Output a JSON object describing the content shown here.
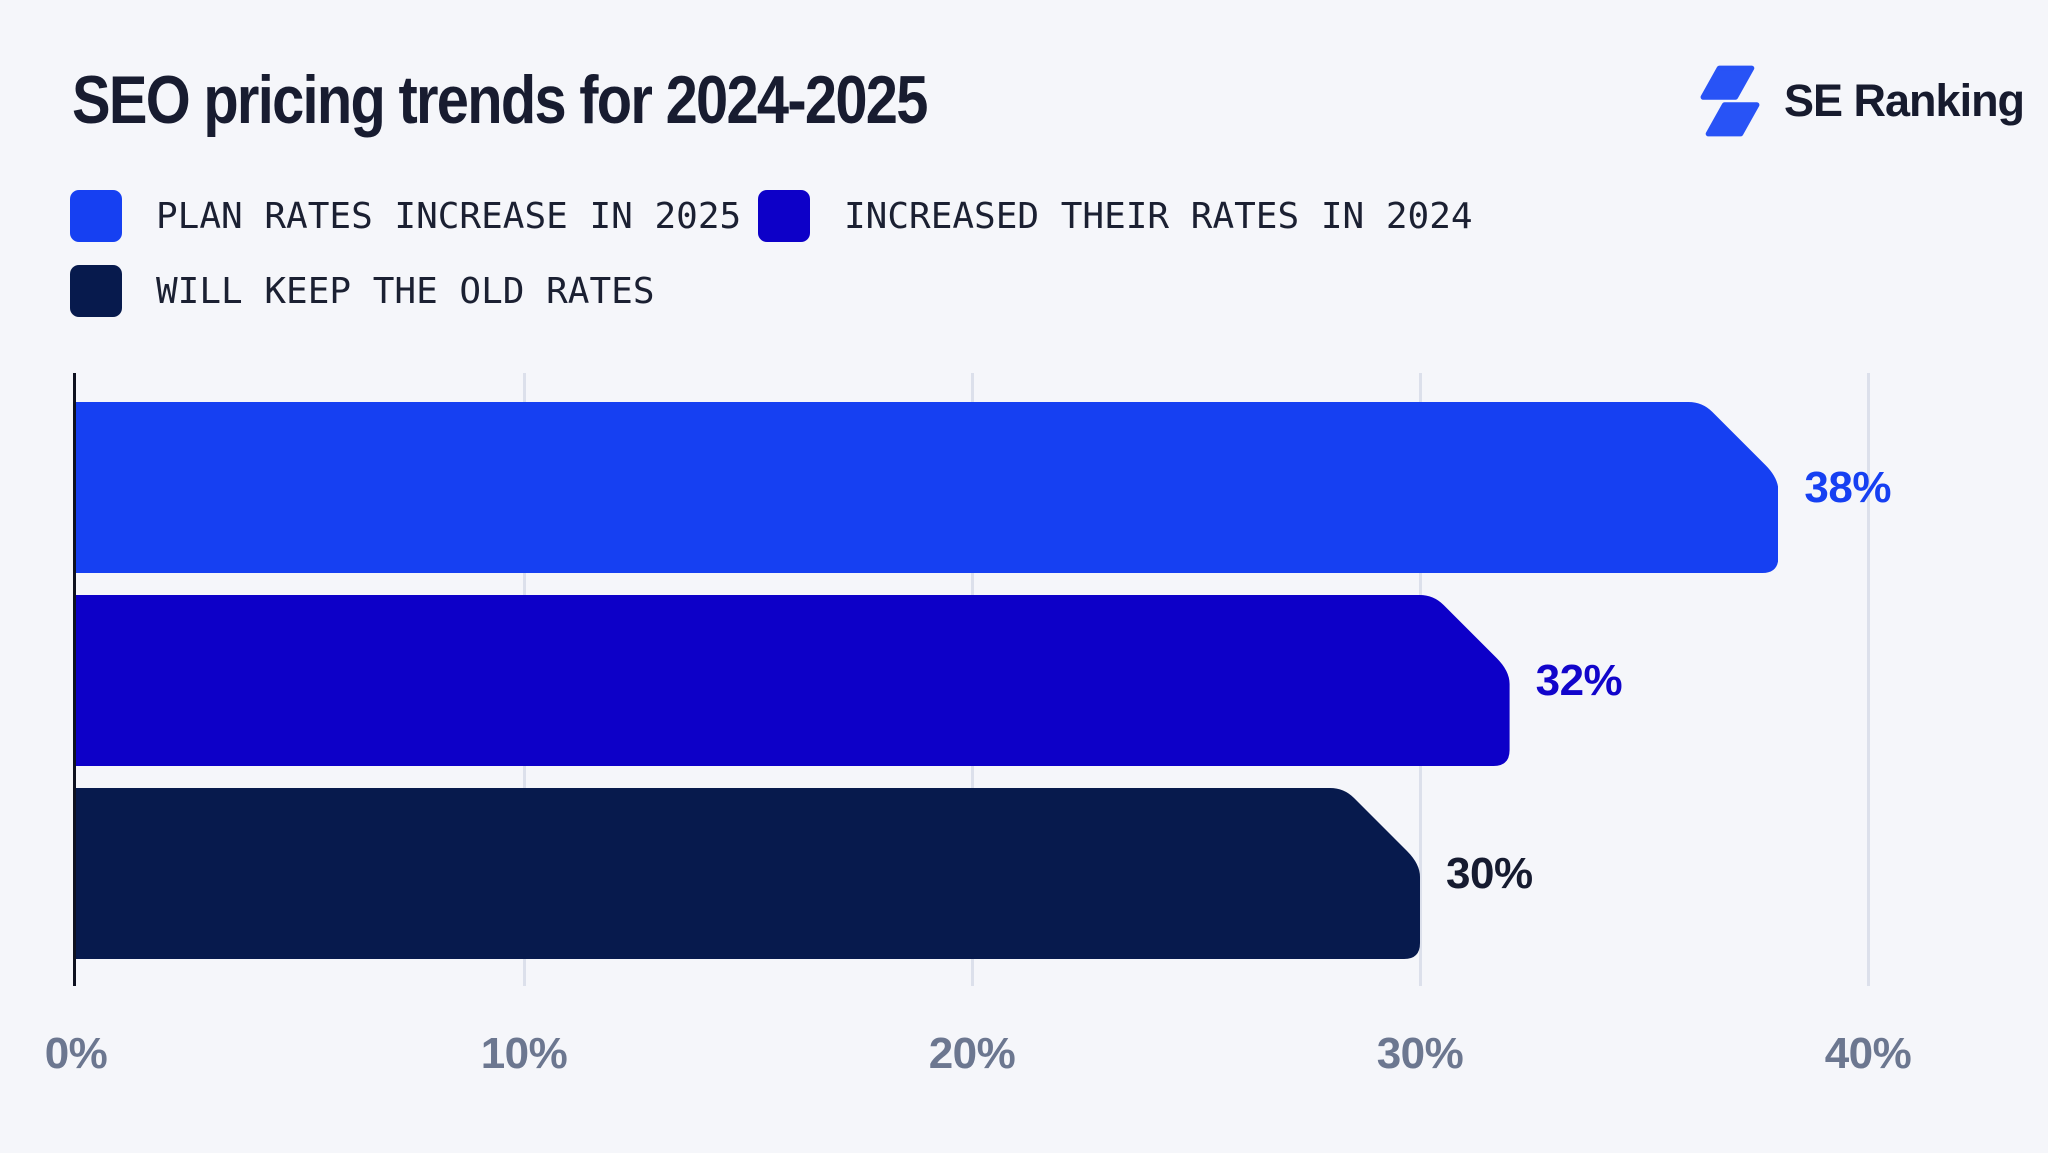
{
  "header": {
    "title": "SEO pricing trends for 2024-2025",
    "brand": "SE Ranking"
  },
  "legend": {
    "items": [
      {
        "label": "PLAN RATES INCREASE IN 2025",
        "color": "#1640F2"
      },
      {
        "label": "INCREASED THEIR RATES IN 2024",
        "color": "#0D00C8"
      },
      {
        "label": "WILL KEEP THE OLD RATES",
        "color": "#071A4D"
      }
    ]
  },
  "chart_data": {
    "type": "bar",
    "orientation": "horizontal",
    "title": "SEO pricing trends for 2024-2025",
    "categories": [
      "Plan rates increase in 2025",
      "Increased their rates in 2024",
      "Will keep the old rates"
    ],
    "values": [
      38,
      32,
      30
    ],
    "value_labels": [
      "38%",
      "32%",
      "30%"
    ],
    "bar_colors": [
      "#1640F2",
      "#0D00C8",
      "#071A4D"
    ],
    "value_label_colors": [
      "#1640F2",
      "#1205CB",
      "#161B30"
    ],
    "xlim": [
      0,
      40
    ],
    "x_ticks": [
      0,
      10,
      20,
      30,
      40
    ],
    "x_tick_labels": [
      "0%",
      "10%",
      "20%",
      "30%",
      "40%"
    ],
    "grid": "vertical-gridlines",
    "legend_position": "top-left"
  },
  "colors": {
    "background": "#F5F6FA",
    "axis_line": "#0E1120",
    "gridline": "#DCE0EB",
    "tick_text": "#6C7790",
    "title_text": "#181C30",
    "legend_text": "#1B2032",
    "logo_blue": "#2853F6",
    "logo_text": "#171B2E"
  }
}
